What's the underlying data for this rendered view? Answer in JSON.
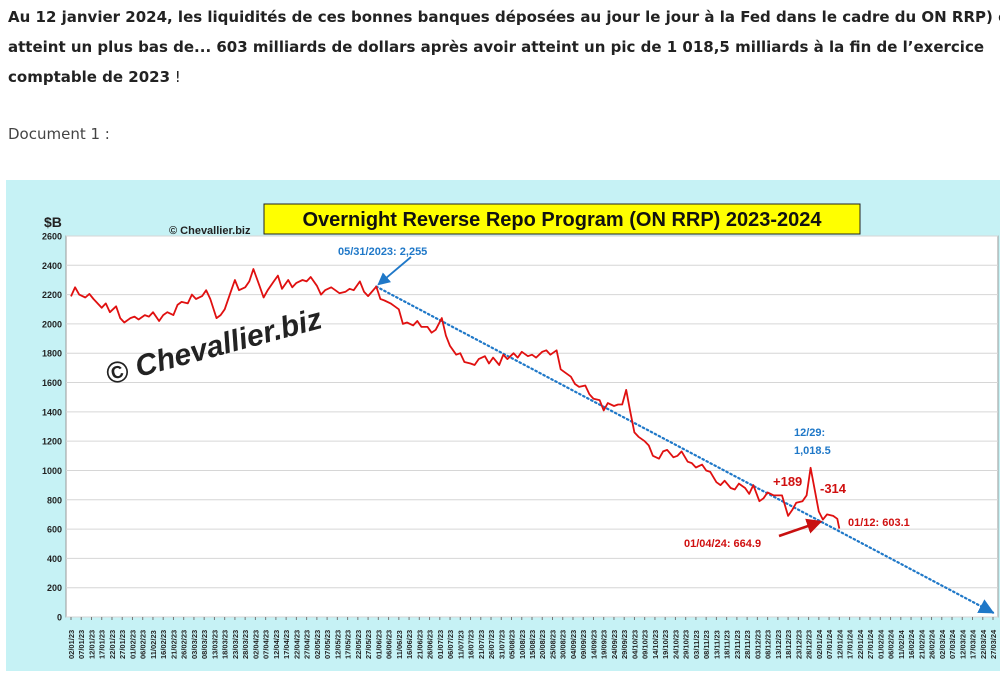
{
  "article": {
    "paragraph_lines": [
      "Au 12 janvier 2024, les liquidités de ces bonnes banques déposées au jour le jour à la Fed dans le cadre du ON RRP) o",
      "atteint un plus bas de... 603 milliards de dollars après avoir atteint un pic de 1 018,5 milliards à la fin de l’exercice",
      "comptable de 2023"
    ],
    "paragraph_end": " !",
    "document_label": "Document 1 :"
  },
  "chart_data": {
    "type": "line",
    "title": "Overnight Reverse Repo Program (ON RRP) 2023-2024",
    "ylabel": "$B",
    "copyright_small": "© Chevallier.biz",
    "watermark": "© Chevallier.biz",
    "ylim": [
      0,
      2600
    ],
    "yticks": [
      0,
      200,
      400,
      600,
      800,
      1000,
      1200,
      1400,
      1600,
      1800,
      2000,
      2200,
      2400,
      2600
    ],
    "grid": "horizontal",
    "x_ticks": [
      "02/01/23",
      "07/01/23",
      "12/01/23",
      "17/01/23",
      "22/01/23",
      "27/01/23",
      "01/02/23",
      "06/02/23",
      "11/02/23",
      "16/02/23",
      "21/02/23",
      "26/02/23",
      "03/03/23",
      "08/03/23",
      "13/03/23",
      "18/03/23",
      "23/03/23",
      "28/03/23",
      "02/04/23",
      "07/04/23",
      "12/04/23",
      "17/04/23",
      "22/04/23",
      "27/04/23",
      "02/05/23",
      "07/05/23",
      "12/05/23",
      "17/05/23",
      "22/05/23",
      "27/05/23",
      "01/06/23",
      "06/06/23",
      "11/06/23",
      "16/06/23",
      "21/06/23",
      "26/06/23",
      "01/07/23",
      "06/07/23",
      "11/07/23",
      "16/07/23",
      "21/07/23",
      "26/07/23",
      "31/07/23",
      "05/08/23",
      "10/08/23",
      "15/08/23",
      "20/08/23",
      "25/08/23",
      "30/08/23",
      "04/09/23",
      "09/09/23",
      "14/09/23",
      "19/09/23",
      "24/09/23",
      "29/09/23",
      "04/10/23",
      "09/10/23",
      "14/10/23",
      "19/10/23",
      "24/10/23",
      "29/10/23",
      "03/11/23",
      "08/11/23",
      "13/11/23",
      "18/11/23",
      "23/11/23",
      "28/11/23",
      "03/12/23",
      "08/12/23",
      "13/12/23",
      "18/12/23",
      "23/12/23",
      "28/12/23",
      "02/01/24",
      "07/01/24",
      "12/01/24",
      "17/01/24",
      "22/01/24",
      "27/01/24",
      "01/02/24",
      "06/02/24",
      "11/02/24",
      "16/02/24",
      "21/02/24",
      "26/02/24",
      "02/03/24",
      "07/03/24",
      "12/03/24",
      "17/03/24",
      "22/03/24",
      "27/03/24"
    ],
    "series": [
      {
        "color": "#e01010",
        "points": [
          [
            "02/01/23",
            2188
          ],
          [
            "04/01/23",
            2250
          ],
          [
            "06/01/23",
            2200
          ],
          [
            "09/01/23",
            2180
          ],
          [
            "11/01/23",
            2205
          ],
          [
            "13/01/23",
            2170
          ],
          [
            "17/01/23",
            2110
          ],
          [
            "19/01/23",
            2140
          ],
          [
            "21/01/23",
            2080
          ],
          [
            "24/01/23",
            2120
          ],
          [
            "26/01/23",
            2040
          ],
          [
            "28/01/23",
            2010
          ],
          [
            "31/01/23",
            2040
          ],
          [
            "02/02/23",
            2050
          ],
          [
            "04/02/23",
            2030
          ],
          [
            "07/02/23",
            2060
          ],
          [
            "09/02/23",
            2050
          ],
          [
            "11/02/23",
            2080
          ],
          [
            "14/02/23",
            2020
          ],
          [
            "16/02/23",
            2060
          ],
          [
            "18/02/23",
            2080
          ],
          [
            "21/02/23",
            2060
          ],
          [
            "23/02/23",
            2130
          ],
          [
            "25/02/23",
            2150
          ],
          [
            "28/02/23",
            2140
          ],
          [
            "02/03/23",
            2200
          ],
          [
            "04/03/23",
            2170
          ],
          [
            "07/03/23",
            2190
          ],
          [
            "09/03/23",
            2230
          ],
          [
            "11/03/23",
            2170
          ],
          [
            "14/03/23",
            2040
          ],
          [
            "16/03/23",
            2060
          ],
          [
            "18/03/23",
            2100
          ],
          [
            "21/03/23",
            2220
          ],
          [
            "23/03/23",
            2300
          ],
          [
            "25/03/23",
            2230
          ],
          [
            "28/03/23",
            2250
          ],
          [
            "30/03/23",
            2290
          ],
          [
            "01/04/23",
            2375
          ],
          [
            "04/04/23",
            2260
          ],
          [
            "06/04/23",
            2180
          ],
          [
            "08/04/23",
            2230
          ],
          [
            "11/04/23",
            2290
          ],
          [
            "13/04/23",
            2330
          ],
          [
            "15/04/23",
            2240
          ],
          [
            "18/04/23",
            2300
          ],
          [
            "20/04/23",
            2250
          ],
          [
            "22/04/23",
            2280
          ],
          [
            "25/04/23",
            2300
          ],
          [
            "27/04/23",
            2290
          ],
          [
            "29/04/23",
            2320
          ],
          [
            "02/05/23",
            2260
          ],
          [
            "04/05/23",
            2200
          ],
          [
            "06/05/23",
            2230
          ],
          [
            "09/05/23",
            2250
          ],
          [
            "11/05/23",
            2230
          ],
          [
            "13/05/23",
            2210
          ],
          [
            "16/05/23",
            2220
          ],
          [
            "18/05/23",
            2240
          ],
          [
            "20/05/23",
            2230
          ],
          [
            "23/05/23",
            2290
          ],
          [
            "25/05/23",
            2220
          ],
          [
            "27/05/23",
            2190
          ],
          [
            "31/05/23",
            2255
          ],
          [
            "02/06/23",
            2170
          ],
          [
            "04/06/23",
            2160
          ],
          [
            "07/06/23",
            2140
          ],
          [
            "09/06/23",
            2120
          ],
          [
            "11/06/23",
            2100
          ],
          [
            "13/06/23",
            2000
          ],
          [
            "15/06/23",
            2010
          ],
          [
            "18/06/23",
            1990
          ],
          [
            "20/06/23",
            2020
          ],
          [
            "22/06/23",
            1980
          ],
          [
            "25/06/23",
            1980
          ],
          [
            "27/06/23",
            1940
          ],
          [
            "29/06/23",
            1960
          ],
          [
            "02/07/23",
            2040
          ],
          [
            "04/07/23",
            1920
          ],
          [
            "06/07/23",
            1850
          ],
          [
            "09/07/23",
            1790
          ],
          [
            "11/07/23",
            1800
          ],
          [
            "13/07/23",
            1740
          ],
          [
            "16/07/23",
            1730
          ],
          [
            "18/07/23",
            1720
          ],
          [
            "20/07/23",
            1760
          ],
          [
            "23/07/23",
            1780
          ],
          [
            "25/07/23",
            1730
          ],
          [
            "27/07/23",
            1770
          ],
          [
            "30/07/23",
            1720
          ],
          [
            "01/08/23",
            1790
          ],
          [
            "03/08/23",
            1760
          ],
          [
            "06/08/23",
            1800
          ],
          [
            "08/08/23",
            1770
          ],
          [
            "10/08/23",
            1810
          ],
          [
            "13/08/23",
            1780
          ],
          [
            "15/08/23",
            1790
          ],
          [
            "17/08/23",
            1770
          ],
          [
            "20/08/23",
            1810
          ],
          [
            "22/08/23",
            1820
          ],
          [
            "24/08/23",
            1790
          ],
          [
            "27/08/23",
            1820
          ],
          [
            "29/08/23",
            1690
          ],
          [
            "31/08/23",
            1670
          ],
          [
            "03/09/23",
            1640
          ],
          [
            "05/09/23",
            1590
          ],
          [
            "07/09/23",
            1570
          ],
          [
            "10/09/23",
            1580
          ],
          [
            "12/09/23",
            1520
          ],
          [
            "14/09/23",
            1490
          ],
          [
            "17/09/23",
            1480
          ],
          [
            "19/09/23",
            1410
          ],
          [
            "21/09/23",
            1460
          ],
          [
            "24/09/23",
            1440
          ],
          [
            "26/09/23",
            1450
          ],
          [
            "28/09/23",
            1450
          ],
          [
            "30/09/23",
            1550
          ],
          [
            "02/10/23",
            1400
          ],
          [
            "04/10/23",
            1260
          ],
          [
            "06/10/23",
            1230
          ],
          [
            "09/10/23",
            1200
          ],
          [
            "11/10/23",
            1170
          ],
          [
            "13/10/23",
            1100
          ],
          [
            "16/10/23",
            1080
          ],
          [
            "18/10/23",
            1130
          ],
          [
            "20/10/23",
            1140
          ],
          [
            "23/10/23",
            1090
          ],
          [
            "25/10/23",
            1100
          ],
          [
            "27/10/23",
            1130
          ],
          [
            "30/10/23",
            1060
          ],
          [
            "01/11/23",
            1050
          ],
          [
            "03/11/23",
            1020
          ],
          [
            "06/11/23",
            1040
          ],
          [
            "08/11/23",
            1000
          ],
          [
            "10/11/23",
            990
          ],
          [
            "13/11/23",
            920
          ],
          [
            "15/11/23",
            900
          ],
          [
            "17/11/23",
            930
          ],
          [
            "20/11/23",
            880
          ],
          [
            "22/11/23",
            870
          ],
          [
            "24/11/23",
            910
          ],
          [
            "27/11/23",
            880
          ],
          [
            "29/11/23",
            840
          ],
          [
            "01/12/23",
            900
          ],
          [
            "04/12/23",
            790
          ],
          [
            "06/12/23",
            810
          ],
          [
            "08/12/23",
            850
          ],
          [
            "11/12/23",
            830
          ],
          [
            "13/12/23",
            830
          ],
          [
            "15/12/23",
            830
          ],
          [
            "18/12/23",
            690
          ],
          [
            "20/12/23",
            730
          ],
          [
            "22/12/23",
            780
          ],
          [
            "25/12/23",
            790
          ],
          [
            "27/12/23",
            830
          ],
          [
            "29/12/23",
            1018.5
          ],
          [
            "02/01/24",
            720
          ],
          [
            "04/01/24",
            664.9
          ],
          [
            "06/01/24",
            700
          ],
          [
            "09/01/24",
            690
          ],
          [
            "11/01/24",
            670
          ],
          [
            "12/01/24",
            603.1
          ]
        ]
      },
      {
        "color": "#1f78c8",
        "style": "dotted",
        "points": [
          [
            "31/05/23",
            2255
          ],
          [
            "27/03/24",
            30
          ]
        ]
      }
    ],
    "annotations": [
      {
        "text": "05/31/2023: 2,255",
        "color": "#1f78c8",
        "x": "31/05/23",
        "y": 2255
      },
      {
        "text": "12/29:",
        "color": "#1f78c8"
      },
      {
        "text": "1,018.5",
        "color": "#1f78c8"
      },
      {
        "text": "+189",
        "color": "#d01010"
      },
      {
        "text": "-314",
        "color": "#d01010"
      },
      {
        "text": "01/12: 603.1",
        "color": "#d01010"
      },
      {
        "text": "01/04/24: 664.9",
        "color": "#d01010",
        "x": "04/01/24",
        "y": 664.9
      }
    ]
  }
}
